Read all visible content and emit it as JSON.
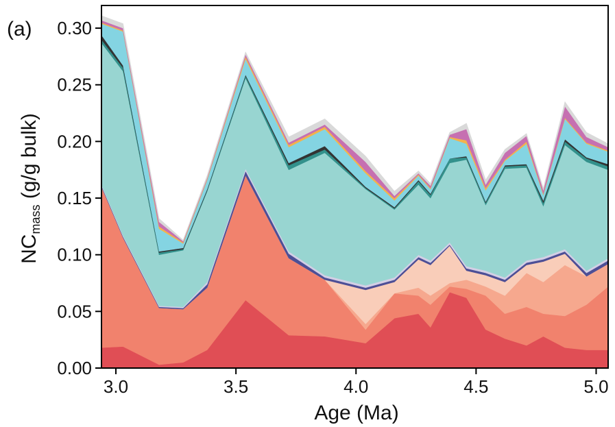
{
  "panel_label": "(a)",
  "chart_data": {
    "type": "area",
    "stacked": true,
    "ylabel_main": "NC",
    "ylabel_sub": "mass",
    "ylabel_rest": " (g/g bulk)",
    "xlabel": "Age (Ma)",
    "xlim": [
      2.94,
      5.05
    ],
    "ylim": [
      0,
      0.32
    ],
    "xticks": [
      "3.0",
      "3.5",
      "4.0",
      "4.5",
      "5.0"
    ],
    "yticks": [
      "0.00",
      "0.05",
      "0.10",
      "0.15",
      "0.20",
      "0.25",
      "0.30"
    ],
    "grid": false,
    "x": [
      2.94,
      3.03,
      3.18,
      3.28,
      3.38,
      3.54,
      3.72,
      3.87,
      4.04,
      4.16,
      4.26,
      4.31,
      4.39,
      4.46,
      4.54,
      4.62,
      4.71,
      4.78,
      4.87,
      4.96,
      5.05
    ],
    "series": [
      {
        "color": "#e04e55",
        "values": [
          0.018,
          0.019,
          0.003,
          0.005,
          0.016,
          0.06,
          0.029,
          0.028,
          0.022,
          0.044,
          0.048,
          0.036,
          0.067,
          0.062,
          0.034,
          0.026,
          0.02,
          0.028,
          0.018,
          0.016,
          0.016
        ]
      },
      {
        "color": "#f1826d",
        "values": [
          0.142,
          0.096,
          0.05,
          0.047,
          0.055,
          0.11,
          0.068,
          0.05,
          0.012,
          0.022,
          0.016,
          0.02,
          0.005,
          0.008,
          0.03,
          0.022,
          0.034,
          0.02,
          0.028,
          0.04,
          0.056
        ]
      },
      {
        "color": "#f6a88e",
        "values": [
          0.0,
          0.0,
          0.0,
          0.0,
          0.0,
          0.0,
          0.0,
          0.0,
          0.005,
          0.0,
          0.007,
          0.008,
          0.003,
          0.008,
          0.008,
          0.016,
          0.03,
          0.028,
          0.045,
          0.025,
          0.02
        ]
      },
      {
        "color": "#f9cdb9",
        "values": [
          0.0,
          0.0,
          0.0,
          0.0,
          0.0,
          0.0,
          0.0,
          0.0,
          0.03,
          0.01,
          0.025,
          0.027,
          0.033,
          0.008,
          0.01,
          0.012,
          0.007,
          0.018,
          0.01,
          0.0,
          0.0
        ]
      },
      {
        "color": "#4d4f96",
        "values": [
          0.001,
          0.001,
          0.001,
          0.001,
          0.003,
          0.004,
          0.004,
          0.002,
          0.002,
          0.002,
          0.002,
          0.002,
          0.001,
          0.002,
          0.002,
          0.002,
          0.002,
          0.002,
          0.002,
          0.003,
          0.003
        ]
      },
      {
        "color": "#d3cfe5",
        "values": [
          0.001,
          0.001,
          0.001,
          0.001,
          0.002,
          0.002,
          0.002,
          0.002,
          0.002,
          0.002,
          0.002,
          0.002,
          0.002,
          0.002,
          0.002,
          0.002,
          0.002,
          0.002,
          0.002,
          0.002,
          0.002
        ]
      },
      {
        "color": "#98d5d1",
        "values": [
          0.125,
          0.145,
          0.045,
          0.05,
          0.08,
          0.08,
          0.072,
          0.108,
          0.085,
          0.06,
          0.062,
          0.055,
          0.07,
          0.094,
          0.058,
          0.096,
          0.082,
          0.045,
          0.092,
          0.096,
          0.078
        ]
      },
      {
        "color": "#33918c",
        "values": [
          0.003,
          0.003,
          0.002,
          0.001,
          0.001,
          0.002,
          0.004,
          0.003,
          0.001,
          0.001,
          0.003,
          0.003,
          0.004,
          0.002,
          0.002,
          0.002,
          0.002,
          0.003,
          0.003,
          0.003,
          0.003
        ]
      },
      {
        "color": "#333333",
        "values": [
          0.004,
          0.002,
          0.001,
          0.001,
          0.001,
          0.001,
          0.002,
          0.003,
          0.001,
          0.001,
          0.001,
          0.001,
          0.0,
          0.001,
          0.001,
          0.001,
          0.001,
          0.002,
          0.002,
          0.001,
          0.002
        ]
      },
      {
        "color": "#84d4e2",
        "values": [
          0.01,
          0.03,
          0.02,
          0.004,
          0.008,
          0.014,
          0.014,
          0.015,
          0.012,
          0.006,
          0.004,
          0.004,
          0.018,
          0.011,
          0.01,
          0.004,
          0.018,
          0.005,
          0.018,
          0.012,
          0.011
        ]
      },
      {
        "color": "#f4b24b",
        "values": [
          0.001,
          0.001,
          0.002,
          0.001,
          0.001,
          0.002,
          0.002,
          0.002,
          0.002,
          0.002,
          0.001,
          0.001,
          0.001,
          0.003,
          0.002,
          0.001,
          0.002,
          0.001,
          0.001,
          0.001,
          0.001
        ]
      },
      {
        "color": "#c670b1",
        "values": [
          0.002,
          0.002,
          0.004,
          0.001,
          0.001,
          0.002,
          0.002,
          0.002,
          0.008,
          0.002,
          0.001,
          0.002,
          0.002,
          0.01,
          0.003,
          0.006,
          0.005,
          0.003,
          0.01,
          0.005,
          0.003
        ]
      },
      {
        "color": "#d9d9d9",
        "values": [
          0.004,
          0.004,
          0.003,
          0.001,
          0.002,
          0.002,
          0.005,
          0.005,
          0.005,
          0.004,
          0.002,
          0.002,
          0.002,
          0.005,
          0.004,
          0.003,
          0.002,
          0.002,
          0.004,
          0.004,
          0.003
        ]
      }
    ]
  }
}
